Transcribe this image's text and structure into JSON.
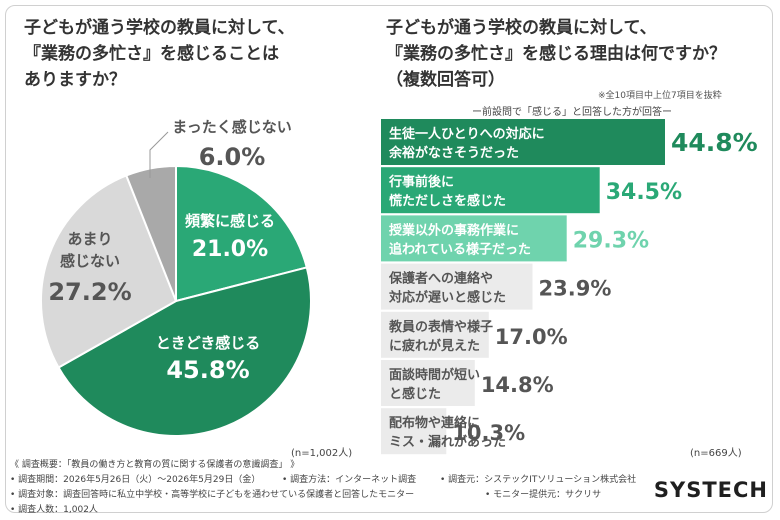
{
  "left_title": "子どもが通う学校の教員に対して、\n『業務の多忙さ』を感じることは\nありますか？",
  "right_title": "子どもが通う学校の教員に対して、\n『業務の多忙さ』を感じる理由は何ですか？\n（複数回答可）",
  "right_note_top": "※全10項目中上位7項目を抜粋",
  "right_subtitle": "ー前設問で「感じる」と回答した方が回答ー",
  "left_n": "(n=1,002人)",
  "right_n": "(n=669人)",
  "colors": {
    "dark_green": "#1f8a5c",
    "mid_green": "#2aa876",
    "light_green": "#6fd3ad",
    "grey_dark": "#a9a9a9",
    "grey_light": "#d9d9d9",
    "bar_grey": "#ebebeb"
  },
  "chart_data": [
    {
      "type": "pie",
      "title": "子どもが通う学校の教員に対して、『業務の多忙さ』を感じることはありますか？",
      "slices": [
        {
          "label": "頻繁に感じる",
          "value": 21.0,
          "display": "21.0%",
          "color": "#2aa876"
        },
        {
          "label": "ときどき感じる",
          "value": 45.8,
          "display": "45.8%",
          "color": "#1f8a5c"
        },
        {
          "label": "あまり感じない",
          "value": 27.2,
          "display": "27.2%",
          "color": "#d9d9d9"
        },
        {
          "label": "まったく感じない",
          "value": 6.0,
          "display": "6.0%",
          "color": "#a9a9a9"
        }
      ]
    },
    {
      "type": "bar",
      "orientation": "horizontal",
      "title": "子どもが通う学校の教員に対して、『業務の多忙さ』を感じる理由は何ですか？（複数回答可）",
      "categories": [
        "生徒一人ひとりへの対応に\n余裕がなさそうだった",
        "行事前後に\n慌ただしさを感じた",
        "授業以外の事務作業に\n追われている様子だった",
        "保護者への連絡や\n対応が遅いと感じた",
        "教員の表情や様子\nに疲れが見えた",
        "面談時間が短い\nと感じた",
        "配布物や連絡に\nミス・漏れがあった"
      ],
      "values": [
        44.8,
        34.5,
        29.3,
        23.9,
        17.0,
        14.8,
        10.3
      ],
      "labels": [
        "44.8%",
        "34.5%",
        "29.3%",
        "23.9%",
        "17.0%",
        "14.8%",
        "10.3%"
      ],
      "colors": [
        "#1f8a5c",
        "#2aa876",
        "#6fd3ad",
        "#ebebeb",
        "#ebebeb",
        "#ebebeb",
        "#ebebeb"
      ]
    }
  ],
  "footer": {
    "heading": "《 調査概要：「教員の働き方と教育の質に関する保護者の意識調査」 》",
    "period": "• 調査期間：2026年5月26日（火）～2026年5月29日（金）",
    "method": "• 調査方法：インターネット調査",
    "organizer": "• 調査元：システックITソリューション株式会社",
    "target": "• 調査対象：調査回答時に私立中学校・高等学校に子どもを通わせている保護者と回答したモニター",
    "provider": "• モニター提供元：サクリサ",
    "count": "• 調査人数：1,002人"
  },
  "logo": "SYSTECH"
}
